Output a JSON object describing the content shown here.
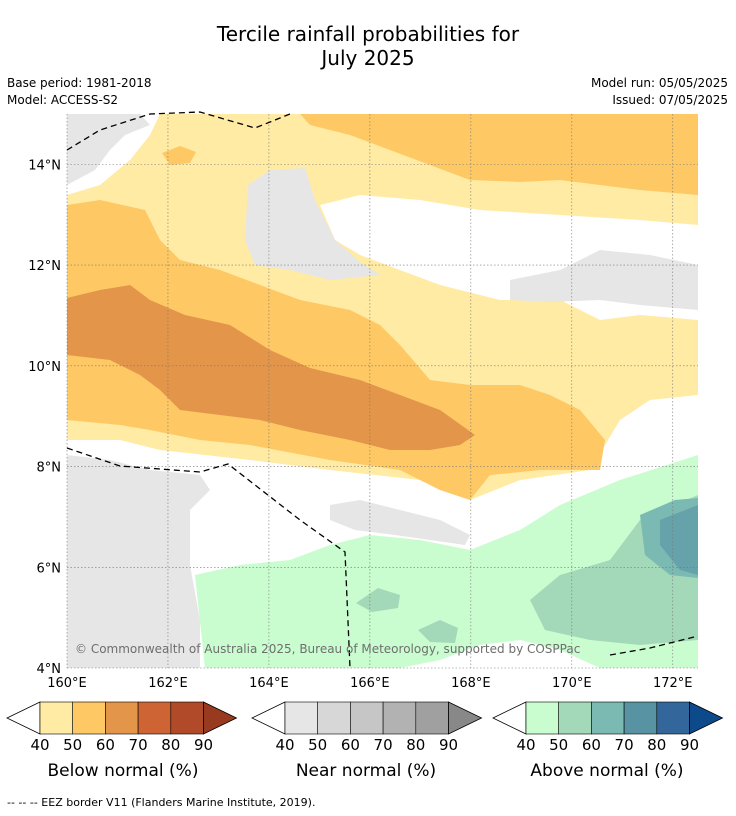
{
  "title_line1": "Tercile rainfall probabilities for",
  "title_line2": "July 2025",
  "base_period": "Base period: 1981-2018",
  "model": "Model: ACCESS-S2",
  "model_run": "Model run: 05/05/2025",
  "issued": "Issued: 07/05/2025",
  "copyright": "© Commonwealth of Australia 2025, Bureau of Meteorology, supported by COSPPac",
  "footer": "--  --  -- EEZ border V11 (Flanders Marine Institute, 2019).",
  "map": {
    "lon_ticks": [
      "160°E",
      "162°E",
      "164°E",
      "166°E",
      "168°E",
      "170°E",
      "172°E"
    ],
    "lat_ticks": [
      "14°N",
      "12°N",
      "10°N",
      "8°N",
      "6°N",
      "4°N"
    ],
    "lon_range": [
      160,
      172.5
    ],
    "lat_range": [
      4,
      15
    ]
  },
  "colorbars": [
    {
      "name": "Below normal (%)",
      "ticks": [
        "40",
        "50",
        "60",
        "70",
        "80",
        "90"
      ],
      "colors": [
        "#ffeba4",
        "#fec865",
        "#e3954a",
        "#ce6434",
        "#b04a28",
        "#983a20"
      ]
    },
    {
      "name": "Near normal (%)",
      "ticks": [
        "40",
        "50",
        "60",
        "70",
        "80",
        "90"
      ],
      "colors": [
        "#e6e6e6",
        "#d7d7d7",
        "#c6c6c6",
        "#b2b2b2",
        "#a0a0a0",
        "#888888"
      ]
    },
    {
      "name": "Above normal (%)",
      "ticks": [
        "40",
        "50",
        "60",
        "70",
        "80",
        "90"
      ],
      "colors": [
        "#c9fdcf",
        "#a3d9b8",
        "#7bb9b3",
        "#5893a4",
        "#33669a",
        "#0c4a8b"
      ]
    }
  ]
}
